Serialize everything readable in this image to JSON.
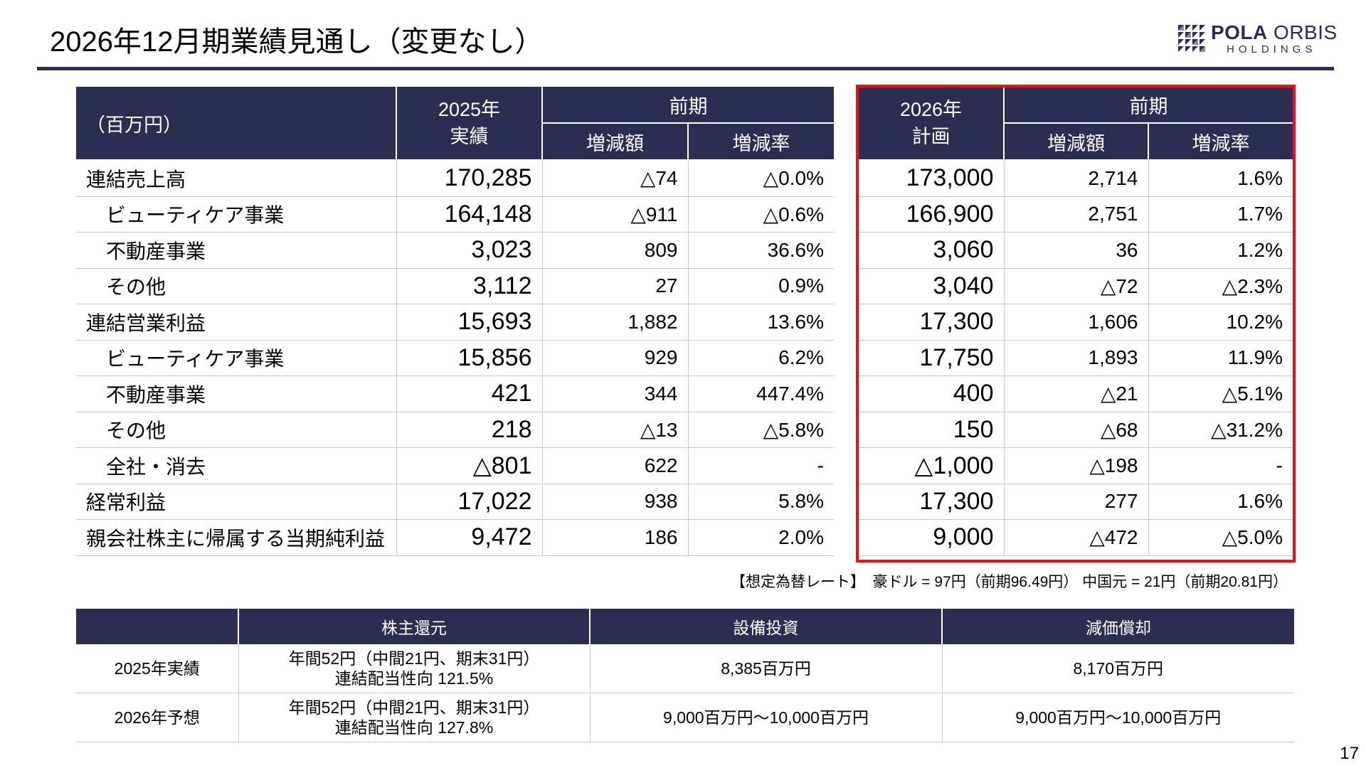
{
  "header": {
    "title": "2026年12月期業績見通し（変更なし）",
    "logo_brand_bold": "POLA",
    "logo_brand_rest": " ORBIS",
    "logo_sub": "HOLDINGS",
    "accent_color": "#2b2d52",
    "highlight_color": "#e8101a"
  },
  "main_table": {
    "unit_label": "（百万円）",
    "col_2025_line1": "2025年",
    "col_2025_line2": "実績",
    "col_prev": "前期",
    "col_diff": "増減額",
    "col_rate": "増減率",
    "col_2026_line1": "2026年",
    "col_2026_line2": "計画",
    "rows": [
      {
        "label": "連結売上高",
        "indent": false,
        "a2025": "170,285",
        "d2025": "△74",
        "r2025": "△0.0%",
        "p2026": "173,000",
        "d2026": "2,714",
        "r2026": "1.6%"
      },
      {
        "label": "ビューティケア事業",
        "indent": true,
        "a2025": "164,148",
        "d2025": "△911",
        "r2025": "△0.6%",
        "p2026": "166,900",
        "d2026": "2,751",
        "r2026": "1.7%"
      },
      {
        "label": "不動産事業",
        "indent": true,
        "a2025": "3,023",
        "d2025": "809",
        "r2025": "36.6%",
        "p2026": "3,060",
        "d2026": "36",
        "r2026": "1.2%"
      },
      {
        "label": "その他",
        "indent": true,
        "a2025": "3,112",
        "d2025": "27",
        "r2025": "0.9%",
        "p2026": "3,040",
        "d2026": "△72",
        "r2026": "△2.3%"
      },
      {
        "label": "連結営業利益",
        "indent": false,
        "a2025": "15,693",
        "d2025": "1,882",
        "r2025": "13.6%",
        "p2026": "17,300",
        "d2026": "1,606",
        "r2026": "10.2%"
      },
      {
        "label": "ビューティケア事業",
        "indent": true,
        "a2025": "15,856",
        "d2025": "929",
        "r2025": "6.2%",
        "p2026": "17,750",
        "d2026": "1,893",
        "r2026": "11.9%"
      },
      {
        "label": "不動産事業",
        "indent": true,
        "a2025": "421",
        "d2025": "344",
        "r2025": "447.4%",
        "p2026": "400",
        "d2026": "△21",
        "r2026": "△5.1%"
      },
      {
        "label": "その他",
        "indent": true,
        "a2025": "218",
        "d2025": "△13",
        "r2025": "△5.8%",
        "p2026": "150",
        "d2026": "△68",
        "r2026": "△31.2%"
      },
      {
        "label": "全社・消去",
        "indent": true,
        "a2025": "△801",
        "d2025": "622",
        "r2025": "-",
        "p2026": "△1,000",
        "d2026": "△198",
        "r2026": "-"
      },
      {
        "label": "経常利益",
        "indent": false,
        "a2025": "17,022",
        "d2025": "938",
        "r2025": "5.8%",
        "p2026": "17,300",
        "d2026": "277",
        "r2026": "1.6%"
      },
      {
        "label": "親会社株主に帰属する当期純利益",
        "indent": false,
        "a2025": "9,472",
        "d2025": "186",
        "r2025": "2.0%",
        "p2026": "9,000",
        "d2026": "△472",
        "r2026": "△5.0%"
      }
    ]
  },
  "fx_note": "【想定為替レート】　豪ドル = 97円（前期96.49円）  中国元 = 21円（前期20.81円）",
  "bottom_table": {
    "col_dividend": "株主還元",
    "col_capex": "設備投資",
    "col_depr": "減価償却",
    "rows": [
      {
        "label": "2025年実績",
        "dividend_line1": "年間52円（中間21円、期末31円）",
        "dividend_line2": "連結配当性向 121.5%",
        "capex": "8,385百万円",
        "depr": "8,170百万円"
      },
      {
        "label": "2026年予想",
        "dividend_line1": "年間52円（中間21円、期末31円）",
        "dividend_line2": "連結配当性向 127.8%",
        "capex": "9,000百万円～10,000百万円",
        "depr": "9,000百万円～10,000百万円"
      }
    ]
  },
  "page_number": "17"
}
